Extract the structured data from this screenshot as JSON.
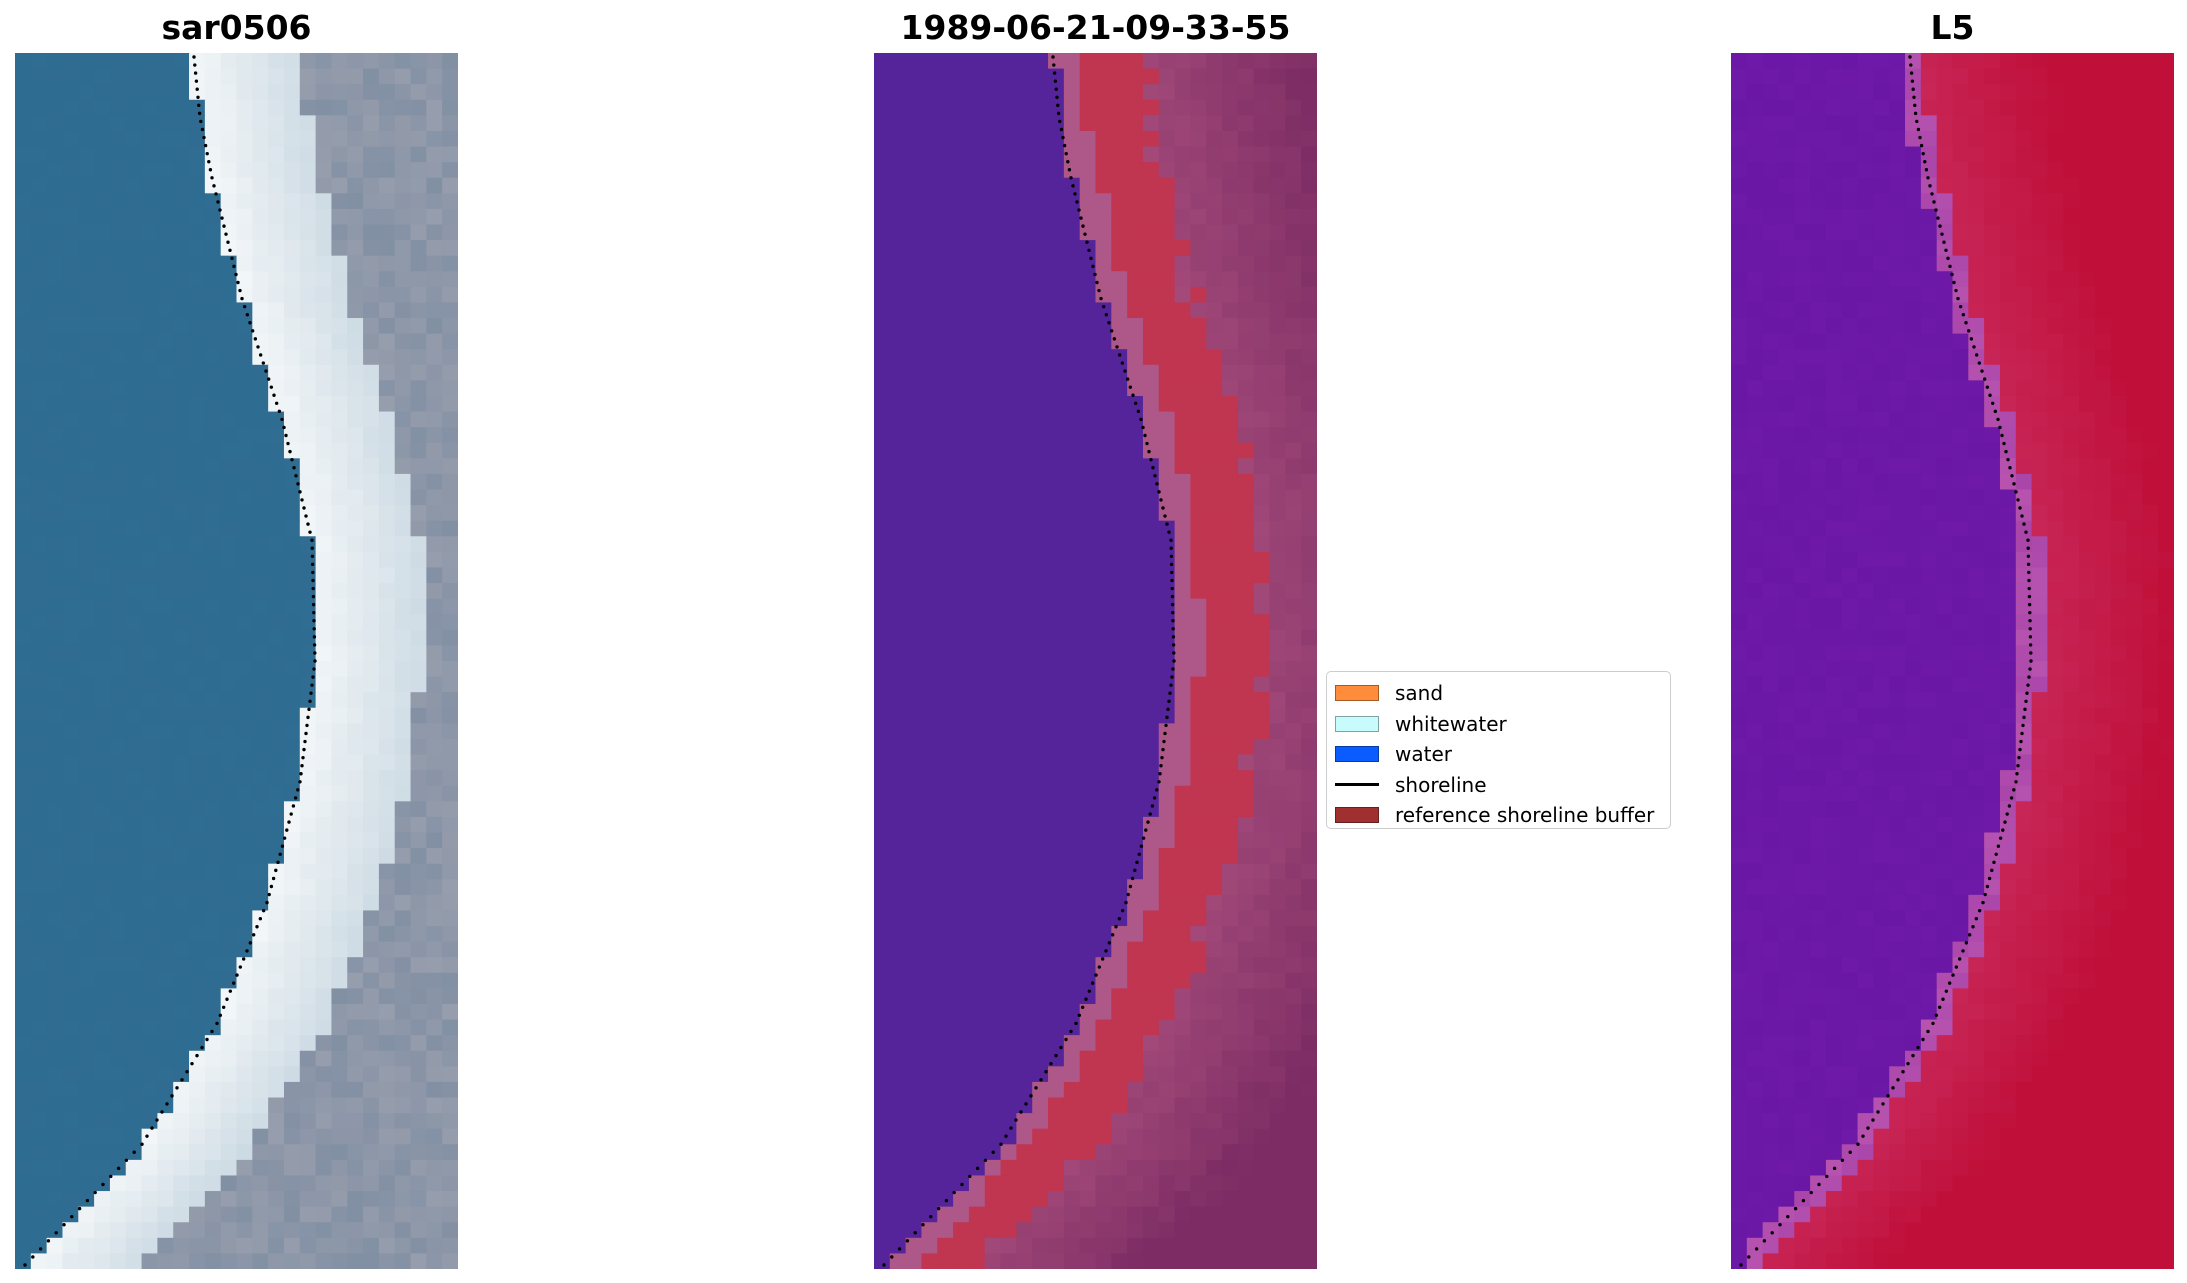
{
  "panels": [
    {
      "id": "rgb",
      "title": "sar0506"
    },
    {
      "id": "classified",
      "title": "1989-06-21-09-33-55"
    },
    {
      "id": "index",
      "title": "L5"
    }
  ],
  "legend": {
    "items": [
      {
        "label": "sand",
        "color": "#ff8c3a",
        "kind": "patch"
      },
      {
        "label": "whitewater",
        "color": "#c8fbfb",
        "kind": "patch"
      },
      {
        "label": "water",
        "color": "#0a5cff",
        "kind": "patch"
      },
      {
        "label": "shoreline",
        "color": "#000000",
        "kind": "line"
      },
      {
        "label": "reference shoreline buffer",
        "color": "#a03030",
        "kind": "patch"
      }
    ]
  },
  "colors": {
    "rgb_water": "#2e6b8f",
    "rgb_surf": "#f2f6f8",
    "rgb_land": "#7f8ea3",
    "class_water": "#55249a",
    "class_buffer": "#c03550",
    "class_land": "#a34a7a",
    "index_water": "#6a17a6",
    "index_land": "#c0103a"
  }
}
